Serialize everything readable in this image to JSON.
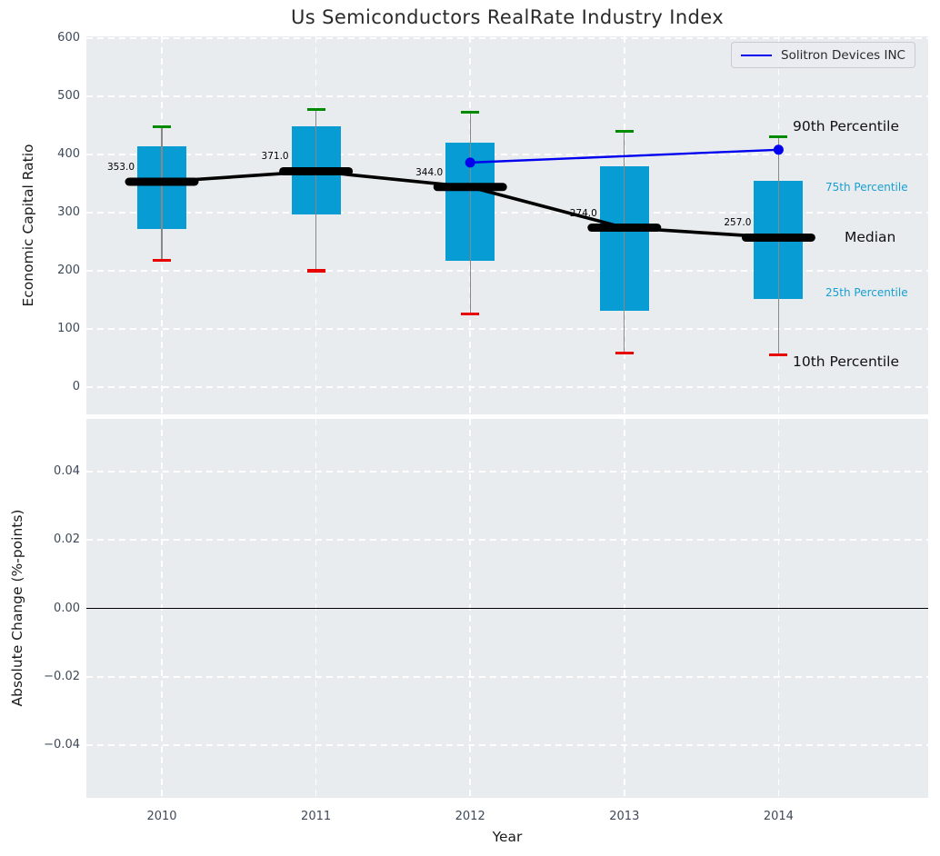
{
  "title": "Us Semiconductors RealRate Industry Index",
  "legend": {
    "label": "Solitron Devices INC"
  },
  "percentile_labels": {
    "p90": "90th Percentile",
    "p75": "75th Percentile",
    "median": "Median",
    "p25": "25th Percentile",
    "p10": "10th Percentile"
  },
  "colors": {
    "box": "#089cd4",
    "cap_top": "#008a00",
    "cap_bottom": "#e80000",
    "median": "#000000",
    "series": "#0000ee",
    "whisker": "#888888",
    "plot_bg": "#e8ecee",
    "grid": "#ffffff",
    "tick_text": "#3e4a59",
    "cyan_label": "#189fd4",
    "zero_line": "#000000"
  },
  "chart_data": [
    {
      "type": "boxplot",
      "title": "Us Semiconductors RealRate Industry Index",
      "xlabel": "Year",
      "ylabel": "Economic Capital Ratio",
      "categories": [
        2010,
        2011,
        2012,
        2013,
        2014
      ],
      "ylim": [
        -47,
        603
      ],
      "yticks": [
        0,
        100,
        200,
        300,
        400,
        500,
        600
      ],
      "grid": true,
      "legend_position": "upper right",
      "boxes": [
        {
          "year": 2010,
          "p10": 218,
          "p25": 271,
          "median": 353,
          "p75": 414,
          "p90": 448,
          "median_label": "353.0"
        },
        {
          "year": 2011,
          "p10": 200,
          "p25": 297,
          "median": 371,
          "p75": 448,
          "p90": 477,
          "median_label": "371.0"
        },
        {
          "year": 2012,
          "p10": 126,
          "p25": 217,
          "median": 344,
          "p75": 420,
          "p90": 473,
          "median_label": "344.0"
        },
        {
          "year": 2013,
          "p10": 58,
          "p25": 131,
          "median": 274,
          "p75": 379,
          "p90": 440,
          "median_label": "274.0"
        },
        {
          "year": 2014,
          "p10": 55,
          "p25": 152,
          "median": 257,
          "p75": 354,
          "p90": 430,
          "median_label": "257.0"
        }
      ],
      "median_line_values": [
        353,
        371,
        344,
        274,
        257
      ],
      "series": [
        {
          "name": "Solitron Devices INC",
          "color": "#0000ee",
          "points": [
            {
              "x": 2012,
              "y": 386
            },
            {
              "x": 2014,
              "y": 408
            }
          ]
        }
      ]
    },
    {
      "type": "line",
      "xlabel": "Year",
      "ylabel": "Absolute Change (%-points)",
      "x": [
        2010,
        2011,
        2012,
        2013,
        2014
      ],
      "ylim": [
        -0.0554,
        0.0554
      ],
      "yticks": [
        0.04,
        0.02,
        0.0,
        -0.02,
        -0.04
      ],
      "grid": true,
      "zero_line": 0.0,
      "series": []
    }
  ]
}
